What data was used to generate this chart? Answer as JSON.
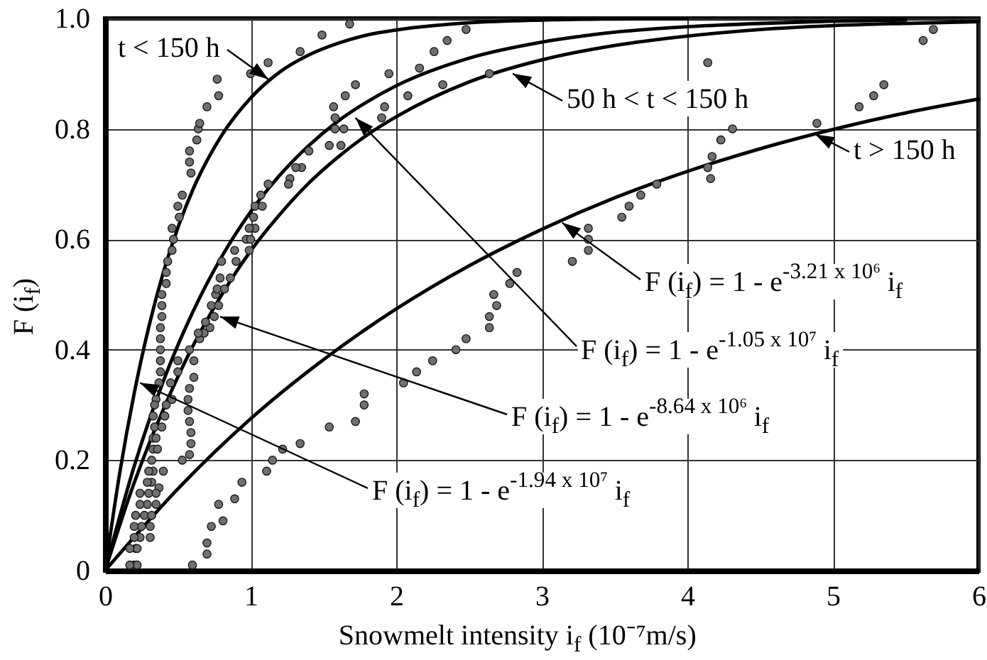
{
  "chart_data": {
    "type": "line",
    "xlabel": "Snowmelt intensity i$_{f}$ (10⁻⁷m/s)",
    "ylabel": "F (i$_{f}$)",
    "xlim": [
      0,
      6
    ],
    "ylim": [
      0,
      1
    ],
    "xticks": [
      0,
      1,
      2,
      3,
      4,
      5,
      6
    ],
    "yticks": [
      0,
      0.2,
      0.4,
      0.6,
      0.8,
      {
        "value": 1,
        "label": "1.0"
      }
    ],
    "grid": true,
    "series": [
      {
        "color": "#000000",
        "x": [
          0,
          0.1,
          0.2,
          0.3,
          0.4,
          0.5,
          0.6,
          0.8,
          1,
          1.2,
          1.4,
          1.6,
          1.8,
          2,
          2.5,
          3,
          3.5,
          4
        ],
        "values": [
          0,
          0.176,
          0.321,
          0.441,
          0.54,
          0.621,
          0.688,
          0.788,
          0.856,
          0.903,
          0.934,
          0.955,
          0.97,
          0.979,
          0.992,
          0.997,
          0.999,
          1
        ]
      },
      {
        "color": "#000000",
        "x": [
          0,
          0.2,
          0.4,
          0.6,
          0.8,
          1,
          1.2,
          1.4,
          1.6,
          1.8,
          2,
          2.5,
          3,
          3.5,
          4,
          4.5,
          5,
          5.5
        ],
        "values": [
          0,
          0.189,
          0.343,
          0.467,
          0.568,
          0.65,
          0.716,
          0.77,
          0.814,
          0.849,
          0.878,
          0.928,
          0.957,
          0.975,
          0.985,
          0.991,
          0.995,
          0.997
        ]
      },
      {
        "color": "#000000",
        "x": [
          0,
          0.2,
          0.4,
          0.6,
          0.8,
          1,
          1.2,
          1.4,
          1.6,
          1.8,
          2,
          2.5,
          3,
          3.5,
          4,
          4.5,
          5,
          5.5,
          6
        ],
        "values": [
          0,
          0.159,
          0.292,
          0.405,
          0.499,
          0.579,
          0.645,
          0.702,
          0.749,
          0.789,
          0.822,
          0.885,
          0.925,
          0.951,
          0.968,
          0.98,
          0.987,
          0.991,
          0.994
        ]
      },
      {
        "color": "#000000",
        "x": [
          0,
          0.5,
          1,
          1.5,
          2,
          2.5,
          3,
          3.5,
          4,
          4.5,
          5,
          5.5,
          6
        ],
        "values": [
          0,
          0.148,
          0.275,
          0.382,
          0.474,
          0.552,
          0.618,
          0.675,
          0.723,
          0.764,
          0.799,
          0.829,
          0.854
        ]
      },
      {
        "type": "scatter",
        "color": "#707070",
        "marker": "circle",
        "x": [
          0.42,
          0.43,
          0.46,
          0.47,
          0.46,
          0.51,
          0.5,
          0.53,
          0.59,
          0.58,
          0.58,
          0.63,
          0.64,
          0.65,
          0.7,
          0.78,
          0.77,
          1.0,
          1.12,
          1.34,
          1.49,
          1.68,
          1.72,
          1.65,
          1.57,
          1.58,
          1.58,
          1.64,
          1.54,
          1.62,
          1.4,
          1.35,
          1.31,
          1.27,
          1.26,
          1.12,
          1.07,
          1.03,
          1.08,
          1.02,
          1.03,
          0.99,
          0.97,
          1.0,
          0.99,
          0.89,
          0.9,
          0.8,
          0.79,
          0.86,
          0.42,
          0.39,
          0.39,
          0.39,
          0.38,
          0.38,
          0.38,
          0.38,
          0.38,
          0.37,
          0.35,
          0.34,
          0.33,
          0.34,
          0.33,
          0.33,
          0.32,
          0.33,
          0.32,
          0.3,
          0.29,
          0.27,
          0.25,
          0.24,
          0.21,
          0.2,
          0.5,
          0.5,
          0.53,
          0.58,
          0.59,
          0.59,
          0.58,
          0.57,
          0.57,
          0.58,
          0.61,
          0.61,
          0.58,
          0.65,
          0.68,
          0.64,
          0.72,
          0.69,
          0.75,
          0.73,
          0.78,
          0.76,
          0.77,
          0.82,
          0.45,
          0.46,
          0.42,
          0.41,
          0.39,
          0.35,
          0.36,
          0.4,
          0.37,
          0.35,
          0.35,
          0.32,
          0.31,
          0.31,
          0.22,
          0.22,
          0.3,
          0.29,
          0.24,
          0.24,
          0.21,
          0.2,
          0.2,
          0.17,
          0.17,
          0.6,
          0.7,
          0.7,
          0.73,
          0.81,
          0.78,
          0.89,
          0.94,
          1.11,
          1.15,
          1.22,
          1.34,
          1.54,
          1.72,
          1.78,
          1.78,
          2.05,
          2.14,
          2.25,
          2.41,
          2.48,
          2.64,
          2.64,
          2.69,
          2.67,
          2.78,
          2.83,
          3.21,
          3.32,
          3.32,
          3.32,
          3.55,
          3.6,
          3.68,
          3.79,
          4.14,
          4.16,
          4.17,
          4.23,
          4.31,
          4.89,
          5.18,
          5.28,
          5.35,
          5.62,
          5.69,
          4.14,
          1.92,
          1.9,
          1.95,
          2.08,
          2.16,
          2.26,
          2.32,
          2.35,
          2.48,
          2.64
        ],
        "values": [
          0.54,
          0.56,
          0.58,
          0.6,
          0.62,
          0.64,
          0.66,
          0.68,
          0.72,
          0.74,
          0.76,
          0.78,
          0.8,
          0.81,
          0.84,
          0.86,
          0.89,
          0.9,
          0.92,
          0.94,
          0.97,
          0.99,
          0.88,
          0.86,
          0.84,
          0.82,
          0.8,
          0.8,
          0.77,
          0.77,
          0.76,
          0.73,
          0.73,
          0.71,
          0.7,
          0.7,
          0.68,
          0.66,
          0.66,
          0.64,
          0.62,
          0.62,
          0.6,
          0.6,
          0.58,
          0.58,
          0.56,
          0.56,
          0.53,
          0.53,
          0.52,
          0.5,
          0.48,
          0.46,
          0.44,
          0.42,
          0.4,
          0.38,
          0.36,
          0.34,
          0.31,
          0.3,
          0.28,
          0.26,
          0.24,
          0.22,
          0.2,
          0.18,
          0.16,
          0.14,
          0.12,
          0.1,
          0.08,
          0.06,
          0.04,
          0.01,
          0.38,
          0.36,
          0.2,
          0.21,
          0.23,
          0.25,
          0.27,
          0.29,
          0.31,
          0.33,
          0.35,
          0.38,
          0.4,
          0.42,
          0.43,
          0.43,
          0.44,
          0.45,
          0.46,
          0.48,
          0.48,
          0.5,
          0.51,
          0.51,
          0.34,
          0.31,
          0.3,
          0.28,
          0.26,
          0.24,
          0.22,
          0.18,
          0.15,
          0.14,
          0.12,
          0.1,
          0.08,
          0.06,
          0.04,
          0.01,
          0.18,
          0.16,
          0.14,
          0.12,
          0.1,
          0.08,
          0.06,
          0.04,
          0.01,
          0.01,
          0.03,
          0.05,
          0.08,
          0.09,
          0.12,
          0.13,
          0.16,
          0.18,
          0.2,
          0.22,
          0.23,
          0.26,
          0.27,
          0.3,
          0.32,
          0.34,
          0.36,
          0.38,
          0.4,
          0.42,
          0.44,
          0.46,
          0.48,
          0.5,
          0.52,
          0.54,
          0.56,
          0.58,
          0.6,
          0.62,
          0.64,
          0.66,
          0.68,
          0.7,
          0.73,
          0.71,
          0.75,
          0.78,
          0.8,
          0.81,
          0.84,
          0.86,
          0.88,
          0.96,
          0.98,
          0.92,
          0.84,
          0.82,
          0.9,
          0.86,
          0.91,
          0.94,
          0.88,
          0.96,
          0.98,
          0.9
        ]
      }
    ],
    "annotations": [
      {
        "text": "t < 150 h",
        "x": 1.12,
        "y": 0.89
      },
      {
        "text": "50 h < t < 150 h",
        "x": 2.8,
        "y": 0.9
      },
      {
        "text": "t > 150 h",
        "x": 4.88,
        "y": 0.79
      },
      {
        "text": "F (i$_{f}$) = 1 - e$^{-3.21 x 10⁶}$ i$_{f}$",
        "x": 3.14,
        "y": 0.63
      },
      {
        "text": "F (i$_{f}$) = 1 - e$^{-1.05 x 10⁷}$ i$_{f}$",
        "x": 1.72,
        "y": 0.82
      },
      {
        "text": "F (i$_{f}$) = 1 - e$^{-8.64 x 10⁶}$ i$_{f}$",
        "x": 0.79,
        "y": 0.46
      },
      {
        "text": "F (i$_{f}$) = 1 - e$^{-1.94 x 10⁷}$ i$_{f}$",
        "x": 0.24,
        "y": 0.34
      }
    ]
  }
}
